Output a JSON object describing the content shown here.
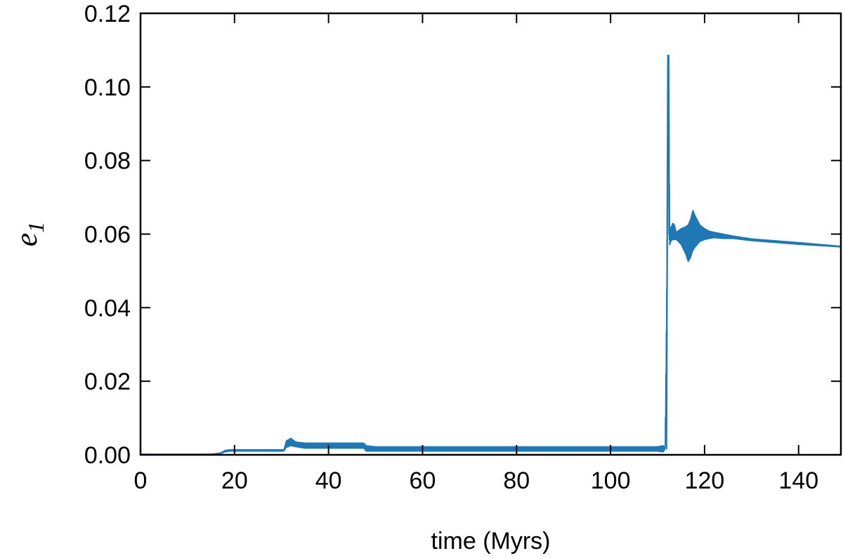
{
  "chart_data": {
    "type": "line",
    "xlabel": "time (Myrs)",
    "ylabel": {
      "symbol": "e",
      "subscript": "1"
    },
    "xlim": [
      0,
      149
    ],
    "ylim": [
      0,
      0.12
    ],
    "xticks": [
      0,
      20,
      40,
      60,
      80,
      100,
      120,
      140
    ],
    "xtick_labels": [
      "0",
      "20",
      "40",
      "60",
      "80",
      "100",
      "120",
      "140"
    ],
    "yticks": [
      0,
      0.02,
      0.04,
      0.06,
      0.08,
      0.1,
      0.12
    ],
    "ytick_labels": [
      "0.00",
      "0.02",
      "0.04",
      "0.06",
      "0.08",
      "0.10",
      "0.12"
    ],
    "grid": false,
    "colors": {
      "series": "#1f77b4",
      "axis": "#000000"
    },
    "series": [
      {
        "color": "#1f77b4",
        "envelope": {
          "x": [
            0,
            15,
            17,
            18,
            19,
            30.5,
            31,
            32,
            33,
            35,
            40,
            47.5,
            48,
            50,
            60,
            80,
            100,
            110,
            111.2,
            111.6,
            112.0,
            112.2,
            112.4,
            112.6,
            112.8,
            113.2,
            113.6,
            114.0,
            115.0,
            116.0,
            116.5,
            117.0,
            117.5,
            118.0,
            119.0,
            120.0,
            121.0,
            122.0,
            124.0,
            126.0,
            130.0,
            140.0,
            149.0
          ],
          "low": [
            0.0,
            0.0,
            0.0003,
            0.0008,
            0.001,
            0.001,
            0.002,
            0.0025,
            0.0022,
            0.0018,
            0.0018,
            0.0018,
            0.001,
            0.001,
            0.001,
            0.001,
            0.001,
            0.001,
            0.0008,
            0.0015,
            0.02,
            0.1085,
            0.06,
            0.0568,
            0.058,
            0.0585,
            0.0585,
            0.0585,
            0.0572,
            0.0545,
            0.0525,
            0.0535,
            0.0555,
            0.0565,
            0.058,
            0.0585,
            0.0588,
            0.059,
            0.0588,
            0.0588,
            0.0582,
            0.0572,
            0.0565
          ],
          "high": [
            0.0002,
            0.0002,
            0.0005,
            0.0012,
            0.0014,
            0.0014,
            0.0038,
            0.0045,
            0.0035,
            0.0032,
            0.0032,
            0.0032,
            0.0025,
            0.0022,
            0.0022,
            0.0022,
            0.0022,
            0.0022,
            0.0025,
            0.002,
            0.055,
            0.1085,
            0.1,
            0.062,
            0.0615,
            0.063,
            0.0625,
            0.0605,
            0.0615,
            0.062,
            0.0625,
            0.064,
            0.0665,
            0.065,
            0.0625,
            0.0615,
            0.0608,
            0.0605,
            0.06,
            0.0595,
            0.0587,
            0.0577,
            0.0567
          ]
        }
      }
    ]
  }
}
